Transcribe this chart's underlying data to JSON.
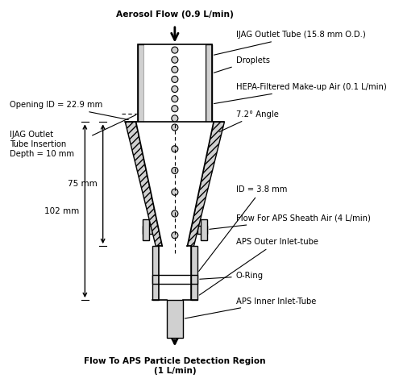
{
  "title": "",
  "bg_color": "#ffffff",
  "labels": {
    "aerosol_flow": "Aerosol Flow (0.9 L/min)",
    "ijag_outlet_tube": "IJAG Outlet Tube (15.8 mm O.D.)",
    "droplets": "Droplets",
    "hepa": "HEPA-Filtered Make-up Air (0.1 L/min)",
    "angle": "7.2° Angle",
    "opening_id": "Opening ID = 22.9 mm",
    "ijag_insertion": "IJAG Outlet\nTube Insertion\nDepth = 10 mm",
    "dim_75": "75 mm",
    "dim_102": "102 mm",
    "id_38": "ID = 3.8 mm",
    "sheath_air": "Flow For APS Sheath Air (4 L/min)",
    "aps_outer": "APS Outer Inlet-tube",
    "o_ring": "O-Ring",
    "aps_inner": "APS Inner Inlet-Tube",
    "flow_out": "Flow To APS Particle Detection Region\n(1 L/min)"
  },
  "colors": {
    "gray_fill": "#b0b0b0",
    "light_gray": "#d0d0d0",
    "hatch_color": "#888888",
    "white": "#ffffff",
    "black": "#000000",
    "dashed_line": "#555555"
  }
}
